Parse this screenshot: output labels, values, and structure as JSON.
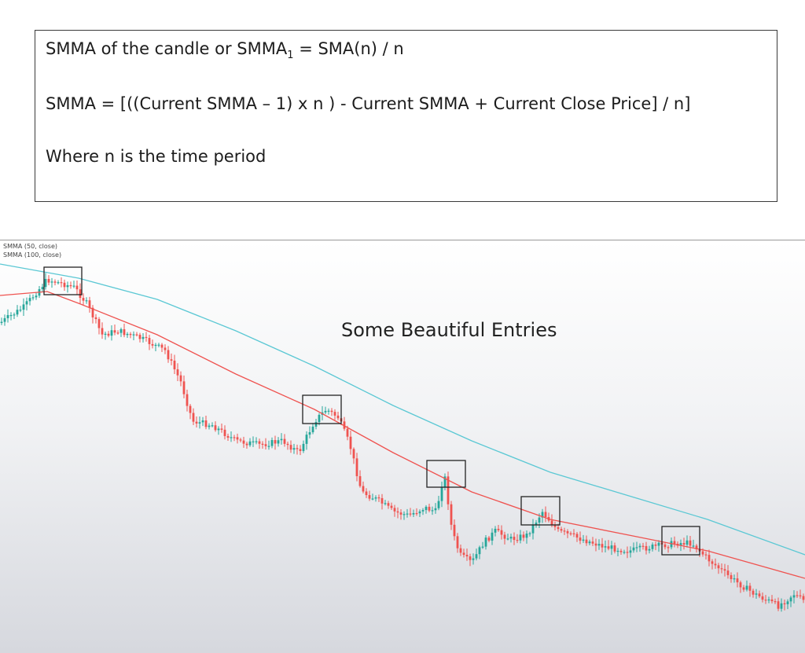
{
  "formula": {
    "line1_prefix": "SMMA of the candle or SMMA",
    "line1_sub": "1",
    "line1_suffix": " = SMA(n) / n",
    "line2": "SMMA = [((Current SMMA – 1) x n ) - Current SMMA + Current Close Price] / n]",
    "line3": "Where n is  the time period"
  },
  "chart_data": {
    "type": "line",
    "legend": [
      "SMMA (50, close)",
      "SMMA (100, close)"
    ],
    "annotation": "Some Beautiful Entries",
    "colors": {
      "up": "#26a69a",
      "down": "#ef5350",
      "smma50": "#ef5350",
      "smma100": "#5bc8d4",
      "box": "#222222"
    },
    "series": [
      {
        "name": "SMMA (50, close)",
        "color": "#ef5350",
        "x": [
          0,
          60,
          100,
          200,
          300,
          400,
          500,
          600,
          700,
          800,
          900,
          1024
        ],
        "y": [
          70,
          65,
          80,
          120,
          170,
          215,
          270,
          320,
          355,
          375,
          395,
          430
        ]
      },
      {
        "name": "SMMA (100, close)",
        "color": "#5bc8d4",
        "x": [
          0,
          100,
          200,
          300,
          400,
          500,
          600,
          700,
          800,
          900,
          1024
        ],
        "y": [
          30,
          48,
          75,
          115,
          160,
          210,
          255,
          295,
          325,
          355,
          400
        ]
      }
    ],
    "price": {
      "x": [
        0,
        30,
        60,
        80,
        95,
        110,
        130,
        150,
        180,
        210,
        230,
        245,
        270,
        300,
        330,
        360,
        380,
        400,
        415,
        430,
        445,
        460,
        480,
        500,
        520,
        540,
        555,
        565,
        575,
        585,
        600,
        615,
        630,
        650,
        670,
        690,
        710,
        740,
        770,
        800,
        830,
        860,
        880,
        900,
        930,
        960,
        990,
        1010,
        1024
      ],
      "y": [
        105,
        85,
        50,
        55,
        60,
        80,
        120,
        115,
        125,
        140,
        180,
        230,
        235,
        255,
        260,
        255,
        270,
        230,
        215,
        225,
        260,
        320,
        330,
        345,
        350,
        340,
        345,
        295,
        370,
        400,
        410,
        385,
        370,
        380,
        375,
        345,
        370,
        380,
        390,
        395,
        390,
        385,
        385,
        405,
        430,
        450,
        465,
        450,
        460
      ]
    },
    "entry_boxes": [
      {
        "x": [
          56,
          104
        ],
        "y": [
          34,
          69
        ]
      },
      {
        "x": [
          385,
          434
        ],
        "y": [
          197,
          233
        ]
      },
      {
        "x": [
          543,
          592
        ],
        "y": [
          280,
          314
        ]
      },
      {
        "x": [
          663,
          712
        ],
        "y": [
          326,
          362
        ]
      },
      {
        "x": [
          842,
          890
        ],
        "y": [
          364,
          400
        ]
      }
    ]
  }
}
